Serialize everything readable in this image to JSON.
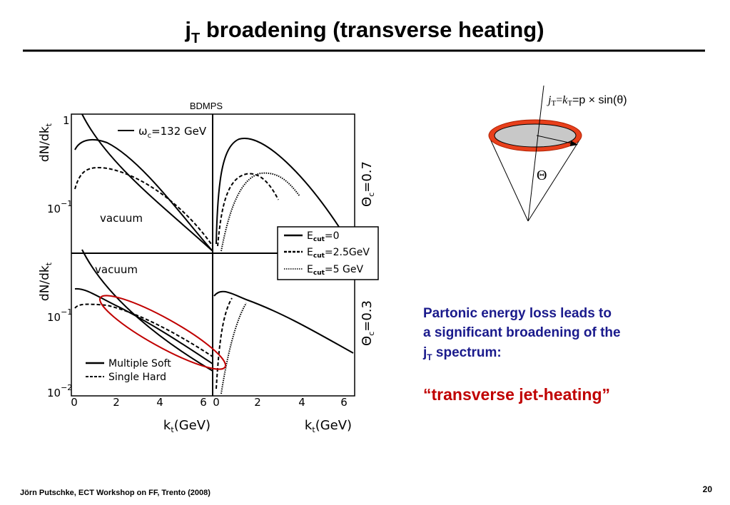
{
  "header": {
    "title": {
      "main": "j",
      "sub": "T",
      "rest": " broadening (transverse heating)"
    }
  },
  "figure": {
    "label": "BDMPS",
    "y_axis_label": {
      "main": "dN/dk",
      "sub": "t"
    },
    "x_axis_label": {
      "main": "k",
      "sub": "t",
      "rest": "(GeV)"
    },
    "x_ticks": [
      "0",
      "2",
      "4",
      "6"
    ],
    "top_panel": {
      "y_ticks": [
        {
          "base": "1"
        },
        {
          "base": "10",
          "exp": "−1"
        }
      ],
      "legend": {
        "main": "ω",
        "sub": "c",
        "rest": "=132 GeV"
      },
      "curve_label": "vacuum",
      "theta": {
        "main": "Θ",
        "sub": "c",
        "rest": "=0.7"
      }
    },
    "bottom_panel": {
      "y_ticks": [
        {
          "base": "10",
          "exp": "−1"
        },
        {
          "base": "10",
          "exp": "−2"
        }
      ],
      "curve_label": "vacuum",
      "legend": [
        "Multiple Soft",
        "Single Hard"
      ],
      "theta": {
        "main": "Θ",
        "sub": "c",
        "rest": "=0.3"
      }
    },
    "ecut_legend": {
      "main": "E",
      "sub": "cut",
      "entries": [
        "=0",
        "=2.5GeV",
        "=5 GeV"
      ]
    }
  },
  "cone": {
    "formula": {
      "j": "j",
      "t1": "T",
      "eq1": "=",
      "k": "k",
      "t2": "T",
      "rest": "=p × sin(θ)"
    },
    "angle": "Θ"
  },
  "text": {
    "lines": [
      "Partonic energy loss leads to",
      "a significant broadening of the"
    ],
    "last": {
      "main": "j",
      "sub": "T",
      "rest": " spectrum:"
    },
    "highlight": "“transverse jet-heating”"
  },
  "footer": {
    "credit": "Jörn Putschke, ECT Workshop on FF, Trento (2008)",
    "page": "20"
  }
}
